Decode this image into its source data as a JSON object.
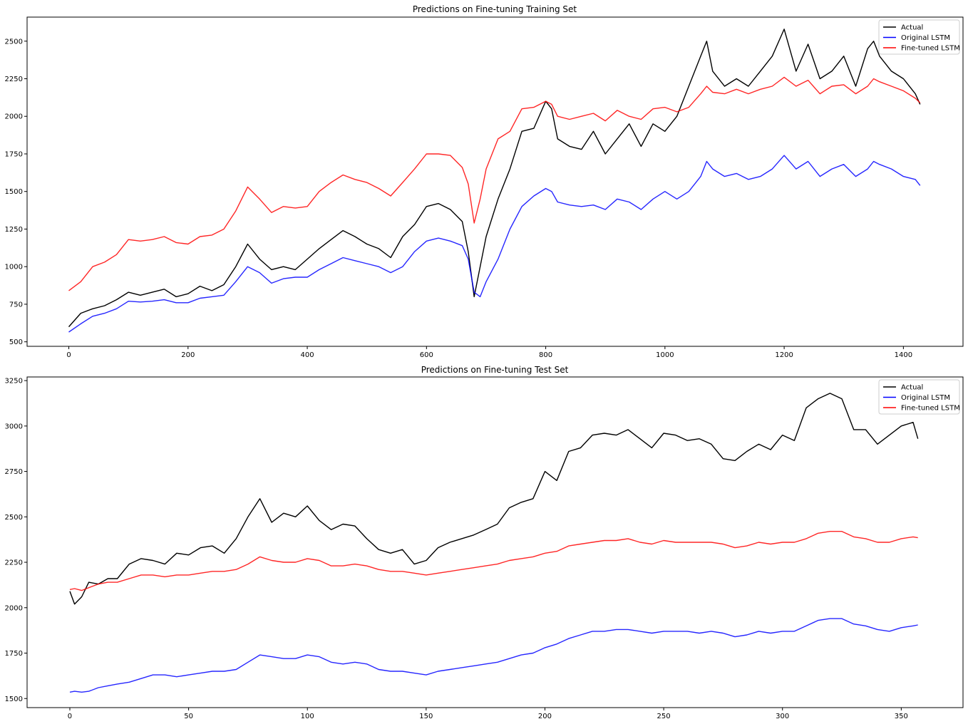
{
  "figure": {
    "background": "#ffffff"
  },
  "chart_data": [
    {
      "type": "line",
      "title": "Predictions on Fine-tuning Training Set",
      "xlabel": "",
      "ylabel": "",
      "xlim": [
        -70,
        1500
      ],
      "ylim": [
        470,
        2660
      ],
      "xticks": [
        0,
        200,
        400,
        600,
        800,
        1000,
        1200,
        1400
      ],
      "yticks": [
        500,
        750,
        1000,
        1250,
        1500,
        1750,
        2000,
        2250,
        2500
      ],
      "legend": {
        "position": "top-right"
      },
      "grid": false,
      "series": [
        {
          "name": "Actual",
          "color": "#000000",
          "x": [
            0,
            20,
            40,
            60,
            80,
            100,
            120,
            140,
            160,
            180,
            200,
            220,
            240,
            260,
            280,
            300,
            320,
            340,
            360,
            380,
            400,
            420,
            440,
            460,
            480,
            500,
            520,
            540,
            560,
            580,
            600,
            620,
            640,
            660,
            670,
            680,
            690,
            700,
            720,
            740,
            760,
            780,
            800,
            810,
            820,
            840,
            860,
            880,
            900,
            920,
            940,
            960,
            980,
            1000,
            1020,
            1040,
            1060,
            1070,
            1080,
            1100,
            1120,
            1140,
            1160,
            1180,
            1200,
            1220,
            1240,
            1260,
            1280,
            1300,
            1320,
            1340,
            1350,
            1360,
            1380,
            1400,
            1420,
            1428
          ],
          "values": [
            600,
            690,
            720,
            740,
            780,
            830,
            810,
            830,
            850,
            800,
            820,
            870,
            840,
            880,
            1000,
            1150,
            1050,
            980,
            1000,
            980,
            1050,
            1120,
            1180,
            1240,
            1200,
            1150,
            1120,
            1060,
            1200,
            1280,
            1400,
            1420,
            1380,
            1300,
            1100,
            800,
            1000,
            1200,
            1450,
            1650,
            1900,
            1920,
            2100,
            2050,
            1850,
            1800,
            1780,
            1900,
            1750,
            1850,
            1950,
            1800,
            1950,
            1900,
            2000,
            2200,
            2400,
            2500,
            2300,
            2200,
            2250,
            2200,
            2300,
            2400,
            2580,
            2300,
            2480,
            2250,
            2300,
            2400,
            2200,
            2450,
            2500,
            2400,
            2300,
            2250,
            2150,
            2080
          ]
        },
        {
          "name": "Original LSTM",
          "color": "#0000ff",
          "x": [
            0,
            20,
            40,
            60,
            80,
            100,
            120,
            140,
            160,
            180,
            200,
            220,
            240,
            260,
            280,
            300,
            320,
            340,
            360,
            380,
            400,
            420,
            440,
            460,
            480,
            500,
            520,
            540,
            560,
            580,
            600,
            620,
            640,
            660,
            670,
            680,
            690,
            700,
            720,
            740,
            760,
            780,
            800,
            810,
            820,
            840,
            860,
            880,
            900,
            920,
            940,
            960,
            980,
            1000,
            1020,
            1040,
            1060,
            1070,
            1080,
            1100,
            1120,
            1140,
            1160,
            1180,
            1200,
            1220,
            1240,
            1260,
            1280,
            1300,
            1320,
            1340,
            1350,
            1360,
            1380,
            1400,
            1420,
            1428
          ],
          "values": [
            565,
            620,
            670,
            690,
            720,
            770,
            765,
            770,
            780,
            760,
            760,
            790,
            800,
            810,
            900,
            1000,
            960,
            890,
            920,
            930,
            930,
            980,
            1020,
            1060,
            1040,
            1020,
            1000,
            960,
            1000,
            1100,
            1170,
            1190,
            1170,
            1140,
            1050,
            830,
            800,
            900,
            1050,
            1250,
            1400,
            1470,
            1520,
            1500,
            1430,
            1410,
            1400,
            1410,
            1380,
            1450,
            1430,
            1380,
            1450,
            1500,
            1450,
            1500,
            1600,
            1700,
            1650,
            1600,
            1620,
            1580,
            1600,
            1650,
            1740,
            1650,
            1700,
            1600,
            1650,
            1680,
            1600,
            1650,
            1700,
            1680,
            1650,
            1600,
            1580,
            1540
          ]
        },
        {
          "name": "Fine-tuned LSTM",
          "color": "#ff0000",
          "x": [
            0,
            20,
            40,
            60,
            80,
            100,
            120,
            140,
            160,
            180,
            200,
            220,
            240,
            260,
            280,
            300,
            320,
            340,
            360,
            380,
            400,
            420,
            440,
            460,
            480,
            500,
            520,
            540,
            560,
            580,
            600,
            620,
            640,
            660,
            670,
            680,
            690,
            700,
            720,
            740,
            760,
            780,
            800,
            810,
            820,
            840,
            860,
            880,
            900,
            920,
            940,
            960,
            980,
            1000,
            1020,
            1040,
            1060,
            1070,
            1080,
            1100,
            1120,
            1140,
            1160,
            1180,
            1200,
            1220,
            1240,
            1260,
            1280,
            1300,
            1320,
            1340,
            1350,
            1360,
            1380,
            1400,
            1420,
            1428
          ],
          "values": [
            840,
            900,
            1000,
            1030,
            1080,
            1180,
            1170,
            1180,
            1200,
            1160,
            1150,
            1200,
            1210,
            1250,
            1370,
            1530,
            1450,
            1360,
            1400,
            1390,
            1400,
            1500,
            1560,
            1610,
            1580,
            1560,
            1520,
            1470,
            1560,
            1650,
            1750,
            1750,
            1740,
            1660,
            1550,
            1290,
            1450,
            1650,
            1850,
            1900,
            2050,
            2060,
            2100,
            2080,
            2000,
            1980,
            2000,
            2020,
            1970,
            2040,
            2000,
            1980,
            2050,
            2060,
            2030,
            2060,
            2150,
            2200,
            2160,
            2150,
            2180,
            2150,
            2180,
            2200,
            2260,
            2200,
            2240,
            2150,
            2200,
            2210,
            2150,
            2200,
            2250,
            2230,
            2200,
            2170,
            2120,
            2090
          ]
        }
      ]
    },
    {
      "type": "line",
      "title": "Predictions on Fine-tuning Test Set",
      "xlabel": "",
      "ylabel": "",
      "xlim": [
        -18,
        376
      ],
      "ylim": [
        1450,
        3270
      ],
      "xticks": [
        0,
        50,
        100,
        150,
        200,
        250,
        300,
        350
      ],
      "yticks": [
        1500,
        1750,
        2000,
        2250,
        2500,
        2750,
        3000,
        3250
      ],
      "legend": {
        "position": "top-right"
      },
      "grid": false,
      "series": [
        {
          "name": "Actual",
          "color": "#000000",
          "x": [
            0,
            2,
            5,
            8,
            12,
            16,
            20,
            25,
            30,
            35,
            40,
            45,
            50,
            55,
            60,
            65,
            70,
            75,
            80,
            85,
            90,
            95,
            100,
            105,
            110,
            115,
            120,
            125,
            130,
            135,
            140,
            145,
            150,
            155,
            160,
            165,
            170,
            175,
            180,
            185,
            190,
            195,
            200,
            205,
            210,
            215,
            220,
            225,
            230,
            235,
            240,
            245,
            250,
            255,
            260,
            265,
            270,
            275,
            280,
            285,
            290,
            295,
            300,
            305,
            310,
            315,
            320,
            325,
            330,
            335,
            340,
            345,
            350,
            355,
            357
          ],
          "values": [
            2090,
            2020,
            2060,
            2140,
            2130,
            2160,
            2160,
            2240,
            2270,
            2260,
            2240,
            2300,
            2290,
            2330,
            2340,
            2300,
            2380,
            2500,
            2600,
            2470,
            2520,
            2500,
            2560,
            2480,
            2430,
            2460,
            2450,
            2380,
            2320,
            2300,
            2320,
            2240,
            2260,
            2330,
            2360,
            2380,
            2400,
            2430,
            2460,
            2550,
            2580,
            2600,
            2750,
            2700,
            2860,
            2880,
            2950,
            2960,
            2950,
            2980,
            2930,
            2880,
            2960,
            2950,
            2920,
            2930,
            2900,
            2820,
            2810,
            2860,
            2900,
            2870,
            2950,
            2920,
            3100,
            3150,
            3180,
            3150,
            2980,
            2980,
            2900,
            2950,
            3000,
            3020,
            2930
          ]
        },
        {
          "name": "Original LSTM",
          "color": "#0000ff",
          "x": [
            0,
            2,
            5,
            8,
            12,
            16,
            20,
            25,
            30,
            35,
            40,
            45,
            50,
            55,
            60,
            65,
            70,
            75,
            80,
            85,
            90,
            95,
            100,
            105,
            110,
            115,
            120,
            125,
            130,
            135,
            140,
            145,
            150,
            155,
            160,
            165,
            170,
            175,
            180,
            185,
            190,
            195,
            200,
            205,
            210,
            215,
            220,
            225,
            230,
            235,
            240,
            245,
            250,
            255,
            260,
            265,
            270,
            275,
            280,
            285,
            290,
            295,
            300,
            305,
            310,
            315,
            320,
            325,
            330,
            335,
            340,
            345,
            350,
            355,
            357
          ],
          "values": [
            1535,
            1540,
            1535,
            1540,
            1560,
            1570,
            1580,
            1590,
            1610,
            1630,
            1630,
            1620,
            1630,
            1640,
            1650,
            1650,
            1660,
            1700,
            1740,
            1730,
            1720,
            1720,
            1740,
            1730,
            1700,
            1690,
            1700,
            1690,
            1660,
            1650,
            1650,
            1640,
            1630,
            1650,
            1660,
            1670,
            1680,
            1690,
            1700,
            1720,
            1740,
            1750,
            1780,
            1800,
            1830,
            1850,
            1870,
            1870,
            1880,
            1880,
            1870,
            1860,
            1870,
            1870,
            1870,
            1860,
            1870,
            1860,
            1840,
            1850,
            1870,
            1860,
            1870,
            1870,
            1900,
            1930,
            1940,
            1940,
            1910,
            1900,
            1880,
            1870,
            1890,
            1900,
            1905
          ]
        },
        {
          "name": "Fine-tuned LSTM",
          "color": "#ff0000",
          "x": [
            0,
            2,
            5,
            8,
            12,
            16,
            20,
            25,
            30,
            35,
            40,
            45,
            50,
            55,
            60,
            65,
            70,
            75,
            80,
            85,
            90,
            95,
            100,
            105,
            110,
            115,
            120,
            125,
            130,
            135,
            140,
            145,
            150,
            155,
            160,
            165,
            170,
            175,
            180,
            185,
            190,
            195,
            200,
            205,
            210,
            215,
            220,
            225,
            230,
            235,
            240,
            245,
            250,
            255,
            260,
            265,
            270,
            275,
            280,
            285,
            290,
            295,
            300,
            305,
            310,
            315,
            320,
            325,
            330,
            335,
            340,
            345,
            350,
            355,
            357
          ],
          "values": [
            2100,
            2105,
            2095,
            2110,
            2130,
            2140,
            2140,
            2160,
            2180,
            2180,
            2170,
            2180,
            2180,
            2190,
            2200,
            2200,
            2210,
            2240,
            2280,
            2260,
            2250,
            2250,
            2270,
            2260,
            2230,
            2230,
            2240,
            2230,
            2210,
            2200,
            2200,
            2190,
            2180,
            2190,
            2200,
            2210,
            2220,
            2230,
            2240,
            2260,
            2270,
            2280,
            2300,
            2310,
            2340,
            2350,
            2360,
            2370,
            2370,
            2380,
            2360,
            2350,
            2370,
            2360,
            2360,
            2360,
            2360,
            2350,
            2330,
            2340,
            2360,
            2350,
            2360,
            2360,
            2380,
            2410,
            2420,
            2420,
            2390,
            2380,
            2360,
            2360,
            2380,
            2390,
            2385
          ]
        }
      ]
    }
  ]
}
